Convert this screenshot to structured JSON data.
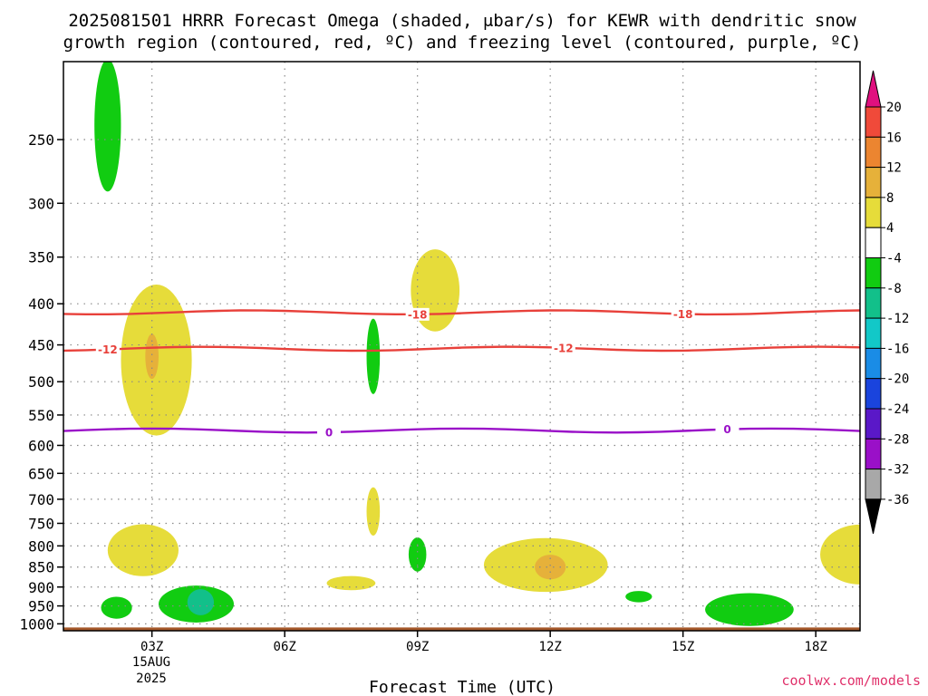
{
  "chart_data": {
    "type": "heatmap",
    "title_line1": "2025081501 HRRR Forecast Omega (shaded, μbar/s) for KEWR with dendritic snow",
    "title_line2": "growth region (contoured, red, ºC) and freezing level (contoured, purple, ºC)",
    "xlabel": "Forecast Time (UTC)",
    "x_ticks": [
      "03Z",
      "06Z",
      "09Z",
      "12Z",
      "15Z",
      "18Z"
    ],
    "x_tick_hours": [
      3,
      6,
      9,
      12,
      15,
      18
    ],
    "x_first_tick_sub": [
      "15AUG",
      "2025"
    ],
    "xlim_hours": [
      1,
      19
    ],
    "y_ticks": [
      250,
      300,
      350,
      400,
      450,
      500,
      550,
      600,
      650,
      700,
      750,
      800,
      850,
      900,
      950,
      1000
    ],
    "ylim_hpa": [
      200,
      1020
    ],
    "y_reversed": true,
    "grid": true,
    "colorbar": {
      "ticks": [
        "20",
        "16",
        "12",
        "8",
        "4",
        "-4",
        "-8",
        "-12",
        "-16",
        "-20",
        "-24",
        "-28",
        "-32",
        "-36"
      ],
      "colors": [
        "#e0107f",
        "#f04a3a",
        "#ec8530",
        "#e6b13a",
        "#e6dc3a",
        "#ffffff",
        "#11cc11",
        "#12c08a",
        "#12c8c8",
        "#1a8ce6",
        "#1a44dd",
        "#5a18c8",
        "#9a10c8",
        "#a8a8a8",
        "#000000"
      ]
    },
    "contours": [
      {
        "name": "-18",
        "color": "#e8403a",
        "level_hpa": 410,
        "labels": [
          "-18",
          "-18"
        ]
      },
      {
        "name": "-12",
        "color": "#e8403a",
        "level_hpa": 455,
        "labels": [
          "-12",
          "-12"
        ]
      },
      {
        "name": "0",
        "color": "#9a10c8",
        "level_hpa": 575,
        "labels": [
          "0",
          "0"
        ]
      }
    ],
    "omega_regions": [
      {
        "value": -4,
        "color": "#11cc11",
        "t": 2.0,
        "p": 240,
        "dt": 0.3,
        "dp": 45
      },
      {
        "value": 4,
        "color": "#e6dc3a",
        "t": 3.1,
        "p": 470,
        "dt": 0.8,
        "dp": 100
      },
      {
        "value": 8,
        "color": "#e6b13a",
        "t": 3.0,
        "p": 465,
        "dt": 0.15,
        "dp": 30
      },
      {
        "value": -4,
        "color": "#11cc11",
        "t": 8.0,
        "p": 465,
        "dt": 0.15,
        "dp": 50
      },
      {
        "value": 4,
        "color": "#e6dc3a",
        "t": 9.4,
        "p": 385,
        "dt": 0.55,
        "dp": 45
      },
      {
        "value": 4,
        "color": "#e6dc3a",
        "t": 8.0,
        "p": 725,
        "dt": 0.15,
        "dp": 50
      },
      {
        "value": 4,
        "color": "#e6dc3a",
        "t": 2.8,
        "p": 810,
        "dt": 0.8,
        "dp": 60
      },
      {
        "value": -4,
        "color": "#11cc11",
        "t": 9.0,
        "p": 820,
        "dt": 0.2,
        "dp": 40
      },
      {
        "value": 4,
        "color": "#e6dc3a",
        "t": 7.5,
        "p": 890,
        "dt": 0.55,
        "dp": 18
      },
      {
        "value": 4,
        "color": "#e6dc3a",
        "t": 11.9,
        "p": 845,
        "dt": 1.4,
        "dp": 65
      },
      {
        "value": 8,
        "color": "#e6b13a",
        "t": 12.0,
        "p": 850,
        "dt": 0.35,
        "dp": 30
      },
      {
        "value": -4,
        "color": "#11cc11",
        "t": 4.0,
        "p": 945,
        "dt": 0.85,
        "dp": 50
      },
      {
        "value": -8,
        "color": "#12c08a",
        "t": 4.1,
        "p": 940,
        "dt": 0.3,
        "dp": 35
      },
      {
        "value": -4,
        "color": "#11cc11",
        "t": 2.2,
        "p": 955,
        "dt": 0.35,
        "dp": 30
      },
      {
        "value": -4,
        "color": "#11cc11",
        "t": 14.0,
        "p": 925,
        "dt": 0.3,
        "dp": 15
      },
      {
        "value": -4,
        "color": "#11cc11",
        "t": 16.5,
        "p": 960,
        "dt": 1.0,
        "dp": 45
      },
      {
        "value": 4,
        "color": "#e6dc3a",
        "t": 19.0,
        "p": 820,
        "dt": 0.9,
        "dp": 70
      }
    ],
    "ground_color": "#a5582a"
  },
  "watermark": "coolwx.com/models",
  "watermark_color": "#e0306a"
}
